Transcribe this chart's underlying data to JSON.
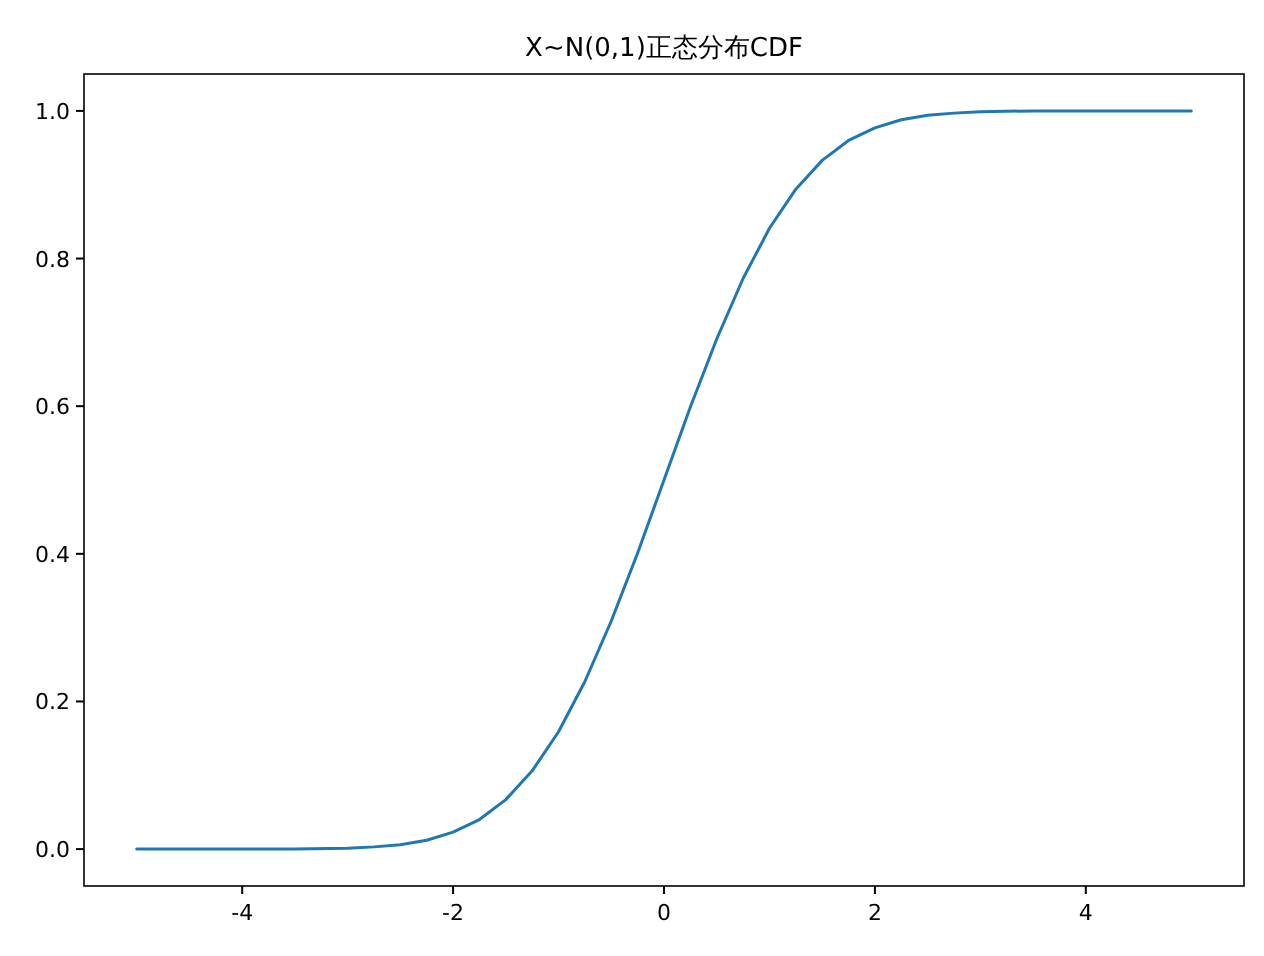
{
  "chart_data": {
    "type": "line",
    "title": "X~N(0,1)正态分布CDF",
    "x": [
      -5,
      -4.5,
      -4,
      -3.5,
      -3,
      -2.75,
      -2.5,
      -2.25,
      -2,
      -1.75,
      -1.5,
      -1.25,
      -1,
      -0.75,
      -0.5,
      -0.25,
      0,
      0.25,
      0.5,
      0.75,
      1,
      1.25,
      1.5,
      1.75,
      2,
      2.25,
      2.5,
      2.75,
      3,
      3.5,
      4,
      4.5,
      5
    ],
    "series": [
      {
        "color": "#1f77b4",
        "values": [
          0.0,
          0.0,
          0.0,
          0.0,
          0.001,
          0.003,
          0.006,
          0.012,
          0.023,
          0.04,
          0.067,
          0.106,
          0.159,
          0.227,
          0.309,
          0.401,
          0.5,
          0.599,
          0.691,
          0.773,
          0.841,
          0.894,
          0.933,
          0.96,
          0.977,
          0.988,
          0.994,
          0.997,
          0.999,
          1.0,
          1.0,
          1.0,
          1.0
        ]
      }
    ],
    "xlim": [
      -5.5,
      5.5
    ],
    "ylim": [
      -0.05,
      1.05
    ],
    "xticks": [
      -4,
      -2,
      0,
      2,
      4
    ],
    "yticks": [
      {
        "value": 0,
        "label": "0.0"
      },
      {
        "value": 0.2,
        "label": "0.2"
      },
      {
        "value": 0.4,
        "label": "0.4"
      },
      {
        "value": 0.6,
        "label": "0.6"
      },
      {
        "value": 0.8,
        "label": "0.8"
      },
      {
        "value": 1.0,
        "label": "1.0"
      }
    ],
    "grid": false,
    "marker": "none",
    "line_style": "solid"
  }
}
